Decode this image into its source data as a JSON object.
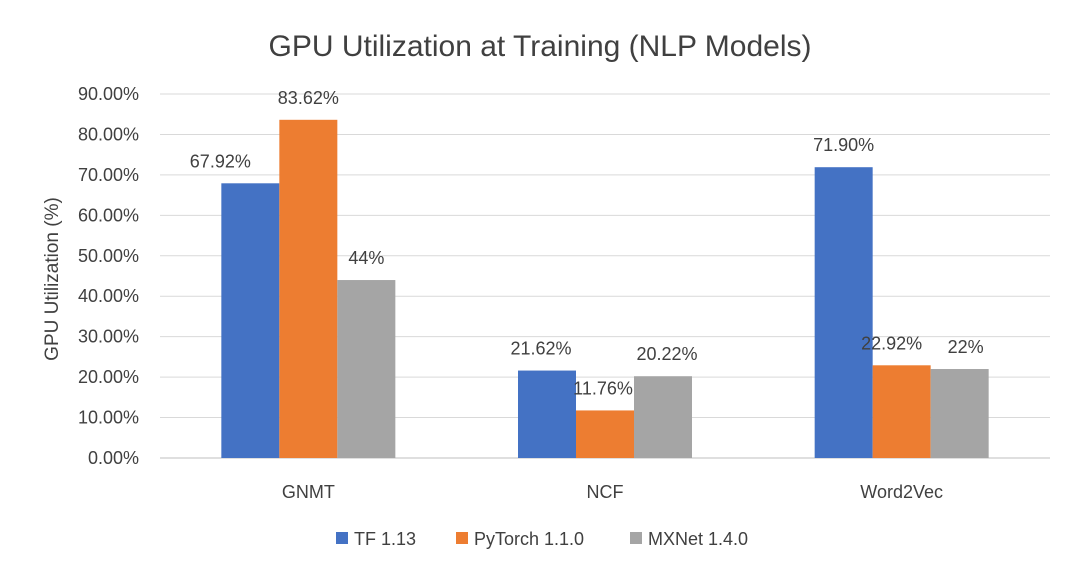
{
  "chart_data": {
    "type": "bar",
    "title": "GPU Utilization at Training (NLP Models)",
    "xlabel": "",
    "ylabel": "GPU Utilization (%)",
    "ylim": [
      0,
      90
    ],
    "y_ticks": [
      0,
      10,
      20,
      30,
      40,
      50,
      60,
      70,
      80,
      90
    ],
    "y_tick_labels": [
      "0.00%",
      "10.00%",
      "20.00%",
      "30.00%",
      "40.00%",
      "50.00%",
      "60.00%",
      "70.00%",
      "80.00%",
      "90.00%"
    ],
    "grid": true,
    "legend_position": "bottom",
    "categories": [
      "GNMT",
      "NCF",
      "Word2Vec"
    ],
    "series": [
      {
        "name": "TF 1.13",
        "color": "#4472C4",
        "values": [
          67.92,
          21.62,
          71.9
        ],
        "labels": [
          "67.92%",
          "21.62%",
          "71.90%"
        ]
      },
      {
        "name": "PyTorch 1.1.0",
        "color": "#ED7D31",
        "values": [
          83.62,
          11.76,
          22.92
        ],
        "labels": [
          "83.62%",
          "11.76%",
          "22.92%"
        ]
      },
      {
        "name": "MXNet 1.4.0",
        "color": "#A5A5A5",
        "values": [
          44,
          20.22,
          22
        ],
        "labels": [
          "44%",
          "20.22%",
          "22%"
        ]
      }
    ]
  }
}
